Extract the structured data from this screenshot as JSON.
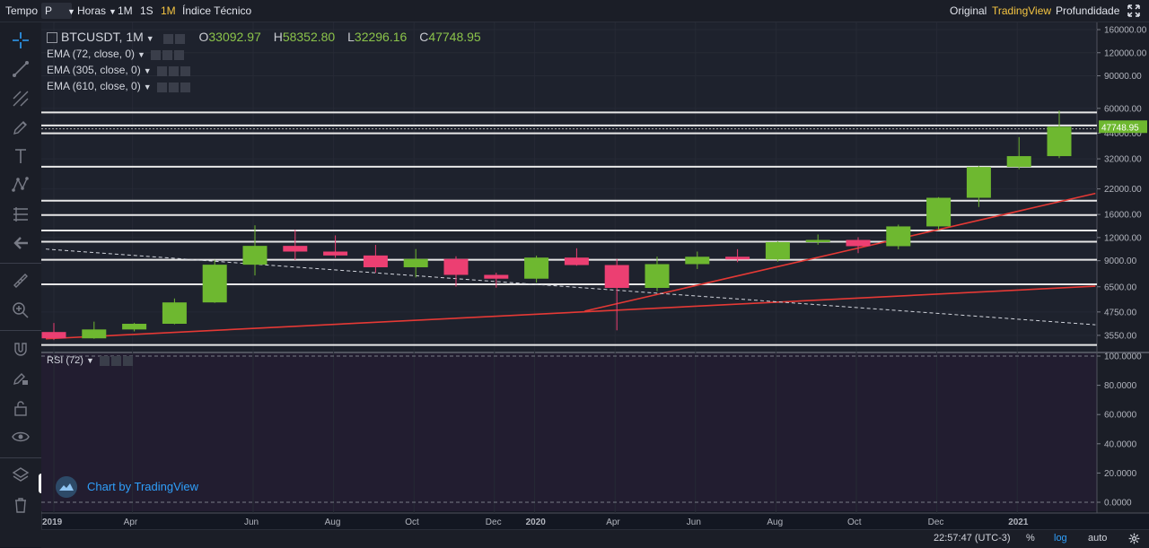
{
  "toolbar": {
    "tempo_label": "Tempo",
    "period_value": "P",
    "interval_select": "Horas",
    "btn_1m": "1M",
    "btn_1s": "1S",
    "btn_1m_active": "1M",
    "indicators": "Índice Técnico",
    "view_original": "Original",
    "view_tradingview": "TradingView",
    "view_depth": "Profundidade"
  },
  "legend": {
    "symbol": "BTCUSDT, 1M",
    "open_label": "O",
    "open": "33092.97",
    "high_label": "H",
    "high": "58352.80",
    "low_label": "L",
    "low": "32296.16",
    "close_label": "C",
    "close": "47748.95",
    "ema1": "EMA (72, close, 0)",
    "ema2": "EMA (305, close, 0)",
    "ema3": "EMA (610, close, 0)",
    "rsi": "RSI (72)"
  },
  "watermark": "Chart by TradingView",
  "bottom": {
    "time": "22:57:47 (UTC-3)",
    "pct": "%",
    "log": "log",
    "auto": "auto"
  },
  "colors": {
    "up": "#6eb830",
    "down": "#ec3f72",
    "trend": "#e53935",
    "level": "#e8e8e8",
    "last_price_bg": "#6eb830",
    "active": "#f5c542",
    "rsi_pane_bg": "#221d30"
  },
  "icons": [
    "crosshair-icon",
    "trendline-icon",
    "pitchfork-icon",
    "brush-icon",
    "text-icon",
    "pattern-icon",
    "fib-icon",
    "back-arrow-icon",
    "ruler-icon",
    "zoom-icon",
    "magnet-icon",
    "draw-lock-icon",
    "lock-icon",
    "eye-icon",
    "layers-icon",
    "trash-icon",
    "settings-icon"
  ],
  "chart_data": {
    "type": "candlestick",
    "symbol": "BTCUSDT",
    "interval": "1M",
    "y_scale": "log",
    "x_labels": [
      "2019",
      "Apr",
      "Jun",
      "Aug",
      "Oct",
      "Dec",
      "2020",
      "Apr",
      "Jun",
      "Aug",
      "Oct",
      "Dec",
      "2021"
    ],
    "y_ticks": [
      "160000.00",
      "120000.00",
      "90000.00",
      "60000.00",
      "44000.00",
      "32000.00",
      "22000.00",
      "16000.00",
      "12000.00",
      "9000.00",
      "6500.00",
      "4750.00",
      "3550.00"
    ],
    "last_price": "47748.95",
    "candles": [
      {
        "t": "2019-01",
        "o": 3700,
        "h": 4140,
        "l": 3350,
        "c": 3420
      },
      {
        "t": "2019-02",
        "o": 3420,
        "h": 4210,
        "l": 3400,
        "c": 3820
      },
      {
        "t": "2019-03",
        "o": 3820,
        "h": 4150,
        "l": 3730,
        "c": 4100
      },
      {
        "t": "2019-04",
        "o": 4100,
        "h": 5620,
        "l": 4070,
        "c": 5350
      },
      {
        "t": "2019-05",
        "o": 5350,
        "h": 9100,
        "l": 5320,
        "c": 8560
      },
      {
        "t": "2019-06",
        "o": 8560,
        "h": 13970,
        "l": 7480,
        "c": 10820
      },
      {
        "t": "2019-07",
        "o": 10820,
        "h": 13200,
        "l": 9070,
        "c": 10080
      },
      {
        "t": "2019-08",
        "o": 10080,
        "h": 12330,
        "l": 9320,
        "c": 9600
      },
      {
        "t": "2019-09",
        "o": 9600,
        "h": 10950,
        "l": 7740,
        "c": 8290
      },
      {
        "t": "2019-10",
        "o": 8290,
        "h": 10400,
        "l": 7300,
        "c": 9200
      },
      {
        "t": "2019-11",
        "o": 9200,
        "h": 9510,
        "l": 6520,
        "c": 7540
      },
      {
        "t": "2019-12",
        "o": 7540,
        "h": 7750,
        "l": 6430,
        "c": 7190
      },
      {
        "t": "2020-01",
        "o": 7190,
        "h": 9580,
        "l": 6850,
        "c": 9350
      },
      {
        "t": "2020-02",
        "o": 9350,
        "h": 10500,
        "l": 8450,
        "c": 8520
      },
      {
        "t": "2020-03",
        "o": 8520,
        "h": 9190,
        "l": 3780,
        "c": 6410
      },
      {
        "t": "2020-04",
        "o": 6410,
        "h": 9470,
        "l": 6150,
        "c": 8620
      },
      {
        "t": "2020-05",
        "o": 8620,
        "h": 10080,
        "l": 8110,
        "c": 9450
      },
      {
        "t": "2020-06",
        "o": 9450,
        "h": 10380,
        "l": 8830,
        "c": 9140
      },
      {
        "t": "2020-07",
        "o": 9140,
        "h": 11450,
        "l": 8890,
        "c": 11340
      },
      {
        "t": "2020-08",
        "o": 11340,
        "h": 12470,
        "l": 10980,
        "c": 11650
      },
      {
        "t": "2020-09",
        "o": 11650,
        "h": 12050,
        "l": 9880,
        "c": 10780
      },
      {
        "t": "2020-10",
        "o": 10780,
        "h": 14100,
        "l": 10370,
        "c": 13790
      },
      {
        "t": "2020-11",
        "o": 13790,
        "h": 19860,
        "l": 13200,
        "c": 19700
      },
      {
        "t": "2020-12",
        "o": 19700,
        "h": 29300,
        "l": 17570,
        "c": 28920
      },
      {
        "t": "2021-01",
        "o": 28920,
        "h": 41950,
        "l": 28130,
        "c": 33092.97
      },
      {
        "t": "2021-02",
        "o": 33092.97,
        "h": 58352.8,
        "l": 32296.16,
        "c": 47748.95
      }
    ],
    "horizontal_levels": [
      3150,
      6700,
      9100,
      11400,
      13100,
      15900,
      19000,
      29000,
      44000,
      48500,
      57000
    ],
    "rsi_ticks": [
      "100.0000",
      "80.0000",
      "60.0000",
      "40.0000",
      "20.0000",
      "0.0000"
    ]
  }
}
